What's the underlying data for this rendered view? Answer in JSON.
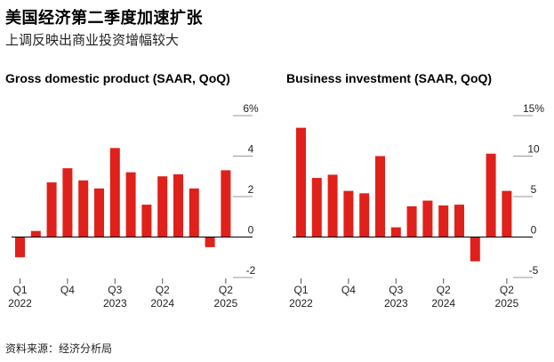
{
  "header": {
    "title": "美国经济第二季度加速扩张",
    "subtitle": "上调反映出商业投资增幅较大"
  },
  "source": "资料来源：经济分析局",
  "colors": {
    "bar": "#e0201b",
    "axis": "#000000",
    "tick": "#999999"
  },
  "chart_data": [
    {
      "type": "bar",
      "title": "Gross domestic product (SAAR, QoQ)",
      "quarters": [
        "Q1 2022",
        "Q2 2022",
        "Q3 2022",
        "Q4 2022",
        "Q1 2023",
        "Q2 2023",
        "Q3 2023",
        "Q4 2023",
        "Q1 2024",
        "Q2 2024",
        "Q3 2024",
        "Q4 2024",
        "Q1 2025",
        "Q2 2025"
      ],
      "values": [
        -1.0,
        0.3,
        2.7,
        3.4,
        2.8,
        2.4,
        4.4,
        3.2,
        1.6,
        3.0,
        3.1,
        2.4,
        -0.5,
        3.3
      ],
      "ylim": [
        -2,
        6
      ],
      "yticks": [
        6,
        4,
        2,
        0,
        -2
      ],
      "ytick_labels": [
        "6%",
        "4",
        "2",
        "0",
        "-2"
      ],
      "xlabels": [
        {
          "quarter": "Q1",
          "year": "2022"
        },
        {
          "quarter": "Q4",
          "year": ""
        },
        {
          "quarter": "Q3",
          "year": "2023"
        },
        {
          "quarter": "Q2",
          "year": "2024"
        },
        {
          "quarter": "Q2",
          "year": "2025"
        }
      ],
      "xlabel_positions": [
        0,
        3,
        6,
        9,
        13
      ]
    },
    {
      "type": "bar",
      "title": "Business investment (SAAR, QoQ)",
      "quarters": [
        "Q1 2022",
        "Q2 2022",
        "Q3 2022",
        "Q4 2022",
        "Q1 2023",
        "Q2 2023",
        "Q3 2023",
        "Q4 2023",
        "Q1 2024",
        "Q2 2024",
        "Q3 2024",
        "Q4 2024",
        "Q1 2025",
        "Q2 2025"
      ],
      "values": [
        13.5,
        7.3,
        7.7,
        5.7,
        5.4,
        10.0,
        1.2,
        3.8,
        4.5,
        3.9,
        4.0,
        -3.0,
        10.3,
        5.7
      ],
      "ylim": [
        -5,
        15
      ],
      "yticks": [
        15,
        10,
        5,
        0,
        -5
      ],
      "ytick_labels": [
        "15%",
        "10",
        "5",
        "0",
        "-5"
      ],
      "xlabels": [
        {
          "quarter": "Q1",
          "year": "2022"
        },
        {
          "quarter": "Q4",
          "year": ""
        },
        {
          "quarter": "Q3",
          "year": "2023"
        },
        {
          "quarter": "Q2",
          "year": "2024"
        },
        {
          "quarter": "Q2",
          "year": "2025"
        }
      ],
      "xlabel_positions": [
        0,
        3,
        6,
        9,
        13
      ]
    }
  ]
}
